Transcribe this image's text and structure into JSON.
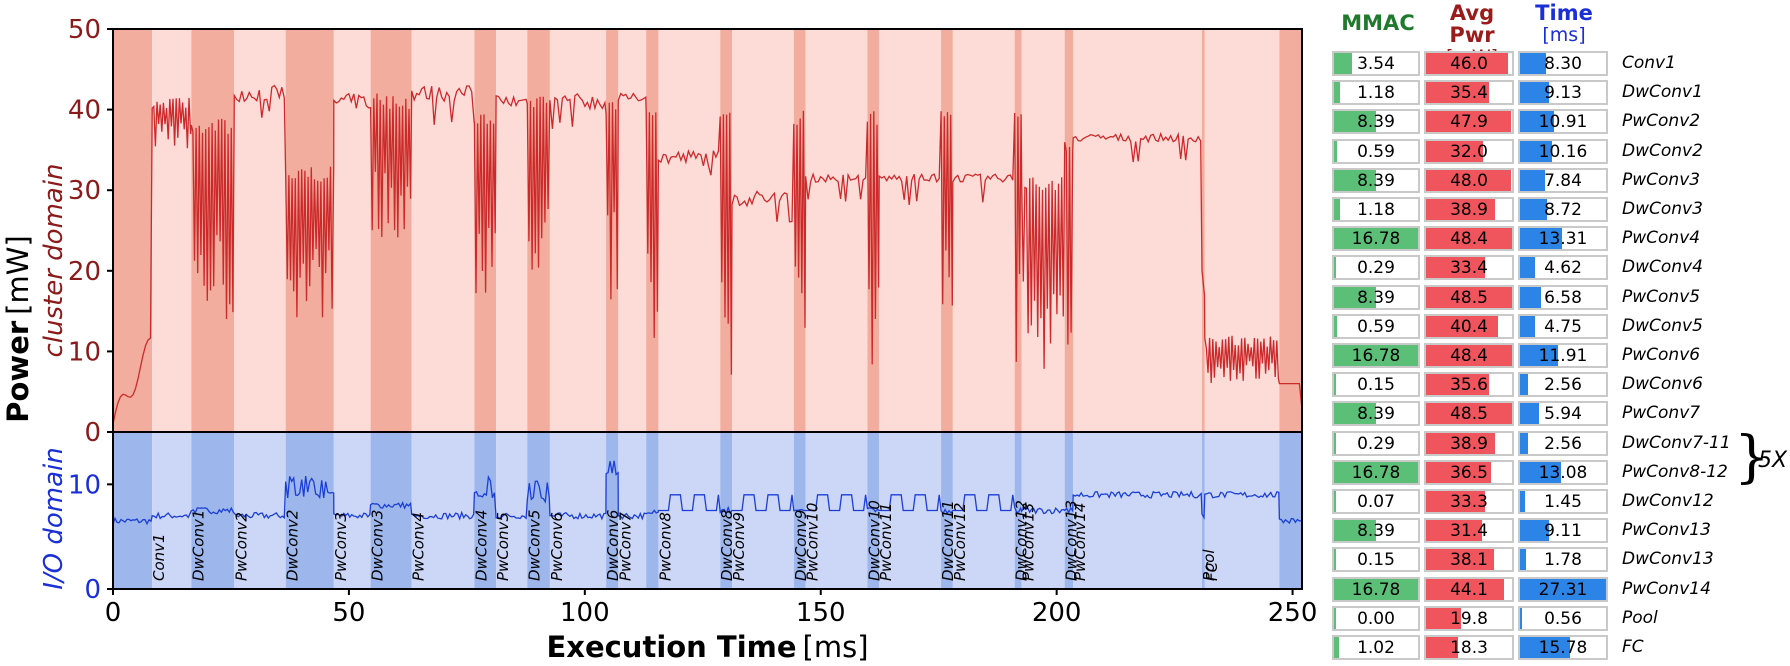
{
  "chart_data": {
    "type": "line",
    "xlabel_bold": "Execution Time",
    "xlabel_unit": "[ms]",
    "ylabel_bold": "Power",
    "ylabel_unit": "[mW]",
    "top_panel_label": "cluster domain",
    "bottom_panel_label": "I/O domain",
    "xlim": [
      0,
      252
    ],
    "x_ticks": [
      "0",
      "50",
      "100",
      "150",
      "200",
      "250"
    ],
    "x_tick_values": [
      0,
      50,
      100,
      150,
      200,
      250
    ],
    "top_ylim": [
      0,
      50
    ],
    "top_y_ticks": [
      "0",
      "10",
      "20",
      "30",
      "40",
      "50"
    ],
    "top_y_tick_values": [
      0,
      10,
      20,
      30,
      40,
      50
    ],
    "bottom_ylim": [
      0,
      15
    ],
    "bottom_y_ticks": [
      "0",
      "10"
    ],
    "bottom_y_tick_values": [
      0,
      10
    ],
    "colors": {
      "cluster_line": "#cc2a2a",
      "cluster_bg_light": "#fddcd8",
      "cluster_bg_dark": "#f2ad9e",
      "io_line": "#1a3fd6",
      "io_bg_light": "#ccd6f6",
      "io_bg_dark": "#9db6ec"
    },
    "segments": [
      {
        "name": "Conv1",
        "start": 0.0,
        "end": 8.3,
        "dark": true,
        "c_level": 2,
        "c_mode": "ramp",
        "io_level": 6.5
      },
      {
        "name": "Conv1",
        "start": 8.3,
        "end": 16.6,
        "dark": false,
        "c_level": 40,
        "c_mode": "dense",
        "c_low": 35,
        "c_hi": 42,
        "io_level": 7.0,
        "label": "Conv1"
      },
      {
        "name": "DwConv1",
        "start": 16.6,
        "end": 25.7,
        "dark": true,
        "c_level": 30,
        "c_mode": "dense",
        "c_low": 13,
        "c_hi": 39,
        "io_level": 7.5,
        "label": "DwConv1"
      },
      {
        "name": "PwConv2",
        "start": 25.7,
        "end": 36.6,
        "dark": false,
        "c_level": 42,
        "c_mode": "flat",
        "c_low": 41,
        "c_hi": 43,
        "io_level": 7.0,
        "label": "PwConv2"
      },
      {
        "name": "DwConv2",
        "start": 36.6,
        "end": 46.8,
        "dark": true,
        "c_level": 25,
        "c_mode": "dense",
        "c_low": 14,
        "c_hi": 33,
        "io_level": 9.0,
        "label": "DwConv2"
      },
      {
        "name": "PwConv3",
        "start": 46.8,
        "end": 54.6,
        "dark": false,
        "c_level": 41,
        "c_mode": "flat",
        "c_low": 40,
        "c_hi": 42,
        "io_level": 7.0,
        "label": "PwConv3"
      },
      {
        "name": "DwConv3",
        "start": 54.6,
        "end": 63.3,
        "dark": true,
        "c_level": 33,
        "c_mode": "dense",
        "c_low": 24,
        "c_hi": 42,
        "io_level": 8.0,
        "label": "DwConv3"
      },
      {
        "name": "PwConv4",
        "start": 63.3,
        "end": 76.6,
        "dark": false,
        "c_level": 42,
        "c_mode": "flat",
        "c_low": 41,
        "c_hi": 43,
        "io_level": 7.0,
        "label": "PwConv4"
      },
      {
        "name": "DwConv4",
        "start": 76.6,
        "end": 81.2,
        "dark": true,
        "c_level": 28,
        "c_mode": "dense",
        "c_low": 14,
        "c_hi": 40,
        "io_level": 9.0,
        "label": "DwConv4"
      },
      {
        "name": "PwConv5",
        "start": 81.2,
        "end": 87.8,
        "dark": false,
        "c_level": 41,
        "c_mode": "flat",
        "c_low": 40,
        "c_hi": 42,
        "io_level": 7.0,
        "label": "PwConv5"
      },
      {
        "name": "DwConv5",
        "start": 87.8,
        "end": 92.6,
        "dark": true,
        "c_level": 35,
        "c_mode": "dense",
        "c_low": 19,
        "c_hi": 42,
        "io_level": 8.5,
        "label": "DwConv5"
      },
      {
        "name": "PwConv6",
        "start": 92.6,
        "end": 104.5,
        "dark": false,
        "c_level": 41,
        "c_mode": "flat",
        "c_low": 40,
        "c_hi": 42,
        "io_level": 7.0,
        "label": "PwConv6"
      },
      {
        "name": "DwConv6",
        "start": 104.5,
        "end": 107.1,
        "dark": true,
        "c_level": 25,
        "c_mode": "dense",
        "c_low": 14,
        "c_hi": 41,
        "io_level": 11.0,
        "label": "DwConv6"
      },
      {
        "name": "PwConv7",
        "start": 107.1,
        "end": 113.0,
        "dark": false,
        "c_level": 42,
        "c_mode": "flat",
        "c_low": 41,
        "c_hi": 42,
        "io_level": 7.0,
        "label": "PwConv7"
      },
      {
        "name": "DwConv7-11",
        "start": 113.0,
        "end": 115.6,
        "dark": true,
        "c_level": 20,
        "c_mode": "dense",
        "c_low": 7,
        "c_hi": 41,
        "io_level": 7.5
      },
      {
        "name": "PwConv8",
        "start": 115.6,
        "end": 128.7,
        "dark": false,
        "c_level": 34,
        "c_mode": "flat",
        "c_low": 33,
        "c_hi": 35,
        "io_level": 7.5,
        "label": "PwConv8"
      },
      {
        "name": "DwConv8",
        "start": 128.7,
        "end": 131.2,
        "dark": true,
        "c_level": 20,
        "c_mode": "dense",
        "c_low": 7,
        "c_hi": 40,
        "io_level": 7.5,
        "label": "DwConv8"
      },
      {
        "name": "PwConv9",
        "start": 131.2,
        "end": 144.3,
        "dark": false,
        "c_level": 29,
        "c_mode": "flat",
        "c_low": 28,
        "c_hi": 30,
        "io_level": 7.5,
        "label": "PwConv9"
      },
      {
        "name": "DwConv9",
        "start": 144.3,
        "end": 146.8,
        "dark": true,
        "c_level": 20,
        "c_mode": "dense",
        "c_low": 7,
        "c_hi": 40,
        "io_level": 7.5,
        "label": "DwConv9"
      },
      {
        "name": "PwConv10",
        "start": 146.8,
        "end": 159.9,
        "dark": false,
        "c_level": 32,
        "c_mode": "flat",
        "c_low": 31,
        "c_hi": 32,
        "io_level": 7.5,
        "label": "PwConv10"
      },
      {
        "name": "DwConv10",
        "start": 159.9,
        "end": 162.4,
        "dark": true,
        "c_level": 20,
        "c_mode": "dense",
        "c_low": 7,
        "c_hi": 40,
        "io_level": 7.5,
        "label": "DwConv10"
      },
      {
        "name": "PwConv11",
        "start": 162.4,
        "end": 175.5,
        "dark": false,
        "c_level": 32,
        "c_mode": "flat",
        "c_low": 31,
        "c_hi": 32,
        "io_level": 7.5,
        "label": "PwConv11"
      },
      {
        "name": "DwConv11",
        "start": 175.5,
        "end": 178.0,
        "dark": true,
        "c_level": 20,
        "c_mode": "dense",
        "c_low": 7,
        "c_hi": 40,
        "io_level": 7.5,
        "label": "DwConv11"
      },
      {
        "name": "PwConv12",
        "start": 178.0,
        "end": 191.1,
        "dark": false,
        "c_level": 32,
        "c_mode": "flat",
        "c_low": 31,
        "c_hi": 32,
        "io_level": 7.5,
        "label": "PwConv12"
      },
      {
        "name": "DwConv12",
        "start": 191.1,
        "end": 192.6,
        "dark": true,
        "c_level": 20,
        "c_mode": "dense",
        "c_low": 7,
        "c_hi": 40,
        "io_level": 7.5,
        "label": "DwConv12"
      },
      {
        "name": "PwConv13",
        "start": 192.6,
        "end": 201.7,
        "dark": false,
        "c_level": 22,
        "c_mode": "dense",
        "c_low": 7,
        "c_hi": 32,
        "io_level": 7.5,
        "label": "PwConv13"
      },
      {
        "name": "DwConv13",
        "start": 201.7,
        "end": 203.5,
        "dark": true,
        "c_level": 20,
        "c_mode": "dense",
        "c_low": 7,
        "c_hi": 36,
        "io_level": 7.5,
        "label": "DwConv13"
      },
      {
        "name": "PwConv14",
        "start": 203.5,
        "end": 230.8,
        "dark": false,
        "c_level": 37,
        "c_mode": "flat",
        "c_low": 36,
        "c_hi": 37,
        "io_level": 9.0,
        "label": "PwConv14"
      },
      {
        "name": "Pool",
        "start": 230.8,
        "end": 231.4,
        "dark": true,
        "c_level": 20,
        "c_mode": "flat",
        "c_low": 20,
        "c_hi": 20,
        "io_level": 7.0,
        "label": "Pool"
      },
      {
        "name": "FC",
        "start": 231.4,
        "end": 247.2,
        "dark": false,
        "c_level": 9,
        "c_mode": "dense",
        "c_low": 6,
        "c_hi": 12,
        "io_level": 9.0,
        "label": "FC"
      },
      {
        "name": "end",
        "start": 247.2,
        "end": 252.0,
        "dark": true,
        "c_level": 6,
        "c_mode": "flat",
        "c_low": 6,
        "c_hi": 6,
        "io_level": 6.5
      }
    ],
    "table": {
      "headers": {
        "mmac": "MMAC",
        "avgpwr": "Avg Pwr",
        "avgpwr_unit": "[mW]",
        "time": "Time",
        "time_unit": "[ms]"
      },
      "mmac_max": 16.78,
      "pwr_max": 48.5,
      "time_max": 27.31,
      "rows": [
        {
          "layer": "Conv1",
          "mmac": "3.54",
          "pwr": "46.0",
          "time": "8.30"
        },
        {
          "layer": "DwConv1",
          "mmac": "1.18",
          "pwr": "35.4",
          "time": "9.13"
        },
        {
          "layer": "PwConv2",
          "mmac": "8.39",
          "pwr": "47.9",
          "time": "10.91"
        },
        {
          "layer": "DwConv2",
          "mmac": "0.59",
          "pwr": "32.0",
          "time": "10.16"
        },
        {
          "layer": "PwConv3",
          "mmac": "8.39",
          "pwr": "48.0",
          "time": "7.84"
        },
        {
          "layer": "DwConv3",
          "mmac": "1.18",
          "pwr": "38.9",
          "time": "8.72"
        },
        {
          "layer": "PwConv4",
          "mmac": "16.78",
          "pwr": "48.4",
          "time": "13.31"
        },
        {
          "layer": "DwConv4",
          "mmac": "0.29",
          "pwr": "33.4",
          "time": "4.62"
        },
        {
          "layer": "PwConv5",
          "mmac": "8.39",
          "pwr": "48.5",
          "time": "6.58"
        },
        {
          "layer": "DwConv5",
          "mmac": "0.59",
          "pwr": "40.4",
          "time": "4.75"
        },
        {
          "layer": "PwConv6",
          "mmac": "16.78",
          "pwr": "48.4",
          "time": "11.91"
        },
        {
          "layer": "DwConv6",
          "mmac": "0.15",
          "pwr": "35.6",
          "time": "2.56"
        },
        {
          "layer": "PwConv7",
          "mmac": "8.39",
          "pwr": "48.5",
          "time": "5.94"
        },
        {
          "layer": "DwConv7-11",
          "mmac": "0.29",
          "pwr": "38.9",
          "time": "2.56"
        },
        {
          "layer": "PwConv8-12",
          "mmac": "16.78",
          "pwr": "36.5",
          "time": "13.08"
        },
        {
          "layer": "DwConv12",
          "mmac": "0.07",
          "pwr": "33.3",
          "time": "1.45"
        },
        {
          "layer": "PwConv13",
          "mmac": "8.39",
          "pwr": "31.4",
          "time": "9.11"
        },
        {
          "layer": "DwConv13",
          "mmac": "0.15",
          "pwr": "38.1",
          "time": "1.78"
        },
        {
          "layer": "PwConv14",
          "mmac": "16.78",
          "pwr": "44.1",
          "time": "27.31"
        },
        {
          "layer": "Pool",
          "mmac": "0.00",
          "pwr": "19.8",
          "time": "0.56"
        },
        {
          "layer": "FC",
          "mmac": "1.02",
          "pwr": "18.3",
          "time": "15.78"
        }
      ],
      "repeat_note": "5X",
      "bar_colors": {
        "mmac": "#5cbf78",
        "pwr": "#f0545c",
        "time": "#2b84e6"
      },
      "header_colors": {
        "mmac": "#1f7a2e",
        "pwr": "#9b1b1b",
        "time": "#1a2fd6"
      }
    }
  }
}
